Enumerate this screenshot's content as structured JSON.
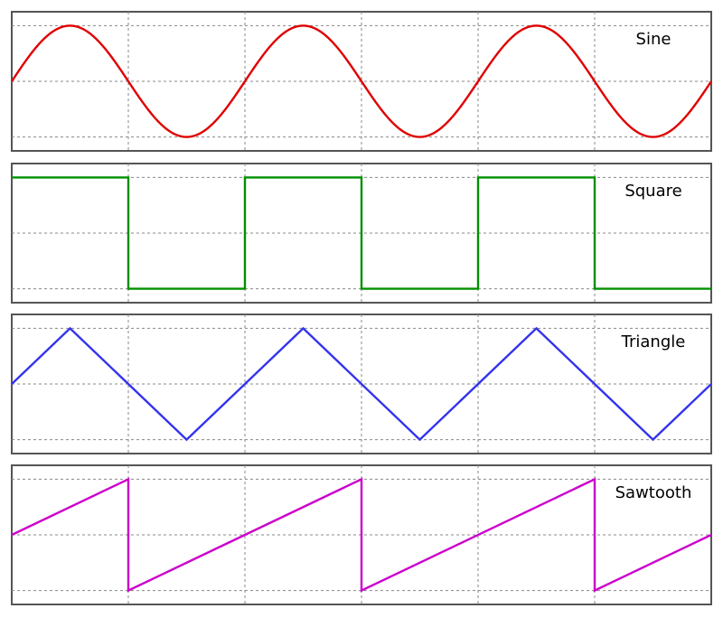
{
  "chart_data": [
    {
      "type": "line",
      "title": "",
      "label": "Sine",
      "color": "#e00000",
      "xlim": [
        0,
        3
      ],
      "ylim": [
        -1.25,
        1.25
      ],
      "grid": true,
      "x_gridlines": [
        0.5,
        1.0,
        1.5,
        2.0,
        2.5
      ],
      "y_gridlines": [
        -1,
        0,
        1
      ],
      "series": [
        {
          "x": [
            0,
            0.125,
            0.25,
            0.375,
            0.5,
            0.625,
            0.75,
            0.875,
            1,
            1.125,
            1.25,
            1.375,
            1.5,
            1.625,
            1.75,
            1.875,
            2,
            2.125,
            2.25,
            2.375,
            2.5,
            2.625,
            2.75,
            2.875,
            3
          ],
          "y": [
            0,
            0.707,
            1,
            0.707,
            0,
            -0.707,
            -1,
            -0.707,
            0,
            0.707,
            1,
            0.707,
            0,
            -0.707,
            -1,
            -0.707,
            0,
            0.707,
            1,
            0.707,
            0,
            -0.707,
            -1,
            -0.707,
            0
          ]
        }
      ]
    },
    {
      "type": "line",
      "title": "",
      "label": "Square",
      "color": "#009000",
      "xlim": [
        0,
        3
      ],
      "ylim": [
        -1.25,
        1.25
      ],
      "grid": true,
      "x_gridlines": [
        0.5,
        1.0,
        1.5,
        2.0,
        2.5
      ],
      "y_gridlines": [
        -1,
        0,
        1
      ],
      "series": [
        {
          "x": [
            0,
            0.5,
            0.5,
            1,
            1,
            1.5,
            1.5,
            2,
            2,
            2.5,
            2.5,
            3
          ],
          "y": [
            1,
            1,
            -1,
            -1,
            1,
            1,
            -1,
            -1,
            1,
            1,
            -1,
            -1
          ]
        }
      ]
    },
    {
      "type": "line",
      "title": "",
      "label": "Triangle",
      "color": "#3333ee",
      "xlim": [
        0,
        3
      ],
      "ylim": [
        -1.25,
        1.25
      ],
      "grid": true,
      "x_gridlines": [
        0.5,
        1.0,
        1.5,
        2.0,
        2.5
      ],
      "y_gridlines": [
        -1,
        0,
        1
      ],
      "series": [
        {
          "x": [
            0,
            0.25,
            0.75,
            1.25,
            1.75,
            2.25,
            2.75,
            3
          ],
          "y": [
            0,
            1,
            -1,
            1,
            -1,
            1,
            -1,
            0
          ]
        }
      ]
    },
    {
      "type": "line",
      "title": "",
      "label": "Sawtooth",
      "color": "#cc00cc",
      "xlim": [
        0,
        3
      ],
      "ylim": [
        -1.25,
        1.25
      ],
      "grid": true,
      "x_gridlines": [
        0.5,
        1.0,
        1.5,
        2.0,
        2.5
      ],
      "y_gridlines": [
        -1,
        0,
        1
      ],
      "series": [
        {
          "x": [
            0,
            0.5,
            0.5,
            1.5,
            1.5,
            2.5,
            2.5,
            3
          ],
          "y": [
            0,
            1,
            -1,
            1,
            -1,
            1,
            -1,
            0
          ]
        }
      ]
    }
  ]
}
